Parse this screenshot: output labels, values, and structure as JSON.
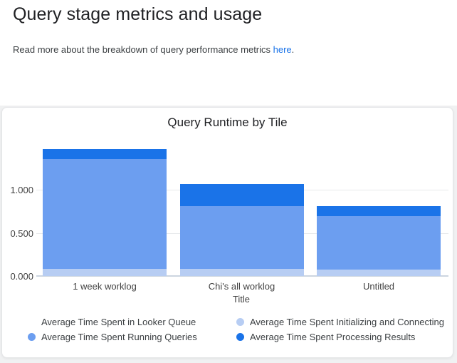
{
  "header": {
    "title": "Query stage metrics and usage",
    "subtitle_prefix": "Read more about the breakdown of query performance metrics ",
    "subtitle_link": "here",
    "subtitle_suffix": "."
  },
  "colors": {
    "link": "#1a73e8",
    "page_background": "#f0f1f2",
    "card_background": "#ffffff",
    "card_border": "#e4e5e7",
    "gridline": "#e7e9eb",
    "axis_line": "#ccd5e0",
    "tick_label_text": "#424242",
    "legend_text": "#3c4043"
  },
  "chart_data": {
    "type": "bar",
    "stacked": true,
    "title": "Query Runtime by Tile",
    "xlabel": "Title",
    "ylabel": "",
    "categories": [
      "1 week worklog",
      "Chi's all worklog",
      "Untitled"
    ],
    "series": [
      {
        "name": "Average Time Spent in Looker Queue",
        "color": "#ffffff",
        "values": [
          0,
          0,
          0
        ]
      },
      {
        "name": "Average Time Spent Running Queries",
        "color": "#6c9ef0",
        "values": [
          1.272,
          0.725,
          0.615
        ]
      },
      {
        "name": "Average Time Spent Initializing and Connecting",
        "color": "#b7cdf3",
        "values": [
          0.083,
          0.085,
          0.077
        ]
      },
      {
        "name": "Average Time Spent Processing Results",
        "color": "#1a73e8",
        "values": [
          0.116,
          0.254,
          0.121
        ]
      }
    ],
    "stack_order_bottom_to_top": [
      0,
      2,
      1,
      3
    ],
    "stack_totals": [
      1.471,
      1.064,
      0.813
    ],
    "yticks": [
      {
        "label": "0.000",
        "value": 0
      },
      {
        "label": "0.500",
        "value": 0.5
      },
      {
        "label": "1.000",
        "value": 1.0
      }
    ],
    "ylim": [
      0,
      1.55
    ],
    "grid": true,
    "legend_position": "bottom",
    "legend_columns": [
      [
        0,
        1
      ],
      [
        2,
        3
      ]
    ]
  }
}
